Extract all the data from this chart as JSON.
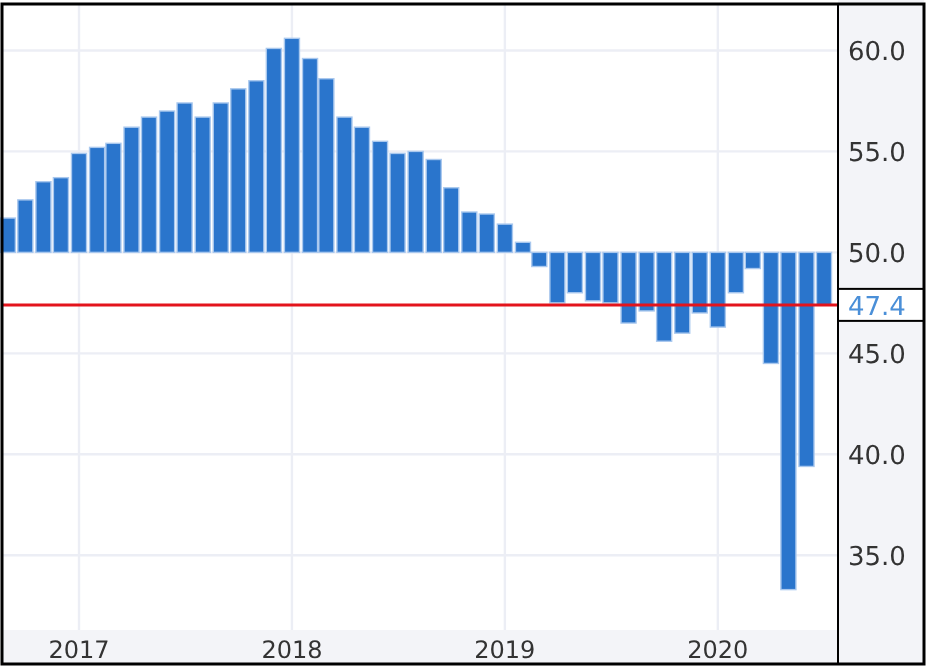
{
  "chart_data": {
    "type": "bar",
    "x": [
      "2016-09",
      "2016-10",
      "2016-11",
      "2016-12",
      "2017-01",
      "2017-02",
      "2017-03",
      "2017-04",
      "2017-05",
      "2017-06",
      "2017-07",
      "2017-08",
      "2017-09",
      "2017-10",
      "2017-11",
      "2017-12",
      "2018-01",
      "2018-02",
      "2018-03",
      "2018-04",
      "2018-05",
      "2018-06",
      "2018-07",
      "2018-08",
      "2018-09",
      "2018-10",
      "2018-11",
      "2018-12",
      "2019-01",
      "2019-02",
      "2019-03",
      "2019-04",
      "2019-05",
      "2019-06",
      "2019-07",
      "2019-08",
      "2019-09",
      "2019-10",
      "2019-11",
      "2019-12",
      "2020-01",
      "2020-02",
      "2020-03",
      "2020-04",
      "2020-05",
      "2020-06",
      "2020-07"
    ],
    "base": [
      50,
      50,
      50,
      50,
      50,
      50,
      50,
      50,
      50,
      50,
      50,
      50,
      50,
      50,
      50,
      50,
      50,
      50,
      50,
      50,
      50,
      50,
      50,
      50,
      50,
      50,
      50,
      50,
      50,
      50,
      50,
      50,
      50,
      50,
      50,
      50,
      50,
      50,
      50,
      50,
      50,
      50,
      50,
      50,
      50,
      50,
      50
    ],
    "values": [
      1.7,
      2.6,
      3.5,
      3.7,
      4.9,
      5.2,
      5.4,
      6.2,
      6.7,
      7.0,
      7.4,
      6.7,
      7.4,
      8.1,
      8.5,
      10.1,
      10.6,
      9.6,
      8.6,
      6.7,
      6.2,
      5.5,
      4.9,
      5.0,
      4.6,
      3.2,
      2.0,
      1.9,
      1.4,
      0.5,
      -0.7,
      -2.5,
      -2.0,
      -2.4,
      -2.5,
      -3.5,
      -2.9,
      -4.4,
      -4.0,
      -3.0,
      -3.7,
      -2.0,
      -0.8,
      -5.5,
      -16.7,
      -10.6,
      -2.6
    ],
    "color": "#2a75cc",
    "xlim": [
      "2016-08-22",
      "2020-07-25"
    ],
    "xticks": [
      {
        "value": "2017-01",
        "label": "2017"
      },
      {
        "value": "2018-01",
        "label": "2018"
      },
      {
        "value": "2019-01",
        "label": "2019"
      },
      {
        "value": "2020-01",
        "label": "2020"
      }
    ],
    "ylim": [
      31.3,
      62.3
    ],
    "yticks": [
      {
        "value": 35,
        "label": "35.0"
      },
      {
        "value": 40,
        "label": "40.0"
      },
      {
        "value": 45,
        "label": "45.0"
      },
      {
        "value": 50,
        "label": "50.0"
      },
      {
        "value": 55,
        "label": "55.0"
      },
      {
        "value": 60,
        "label": "60.0"
      }
    ],
    "ref_lines": [
      {
        "axis": "y",
        "value": 47.4,
        "label": "47.4",
        "color": "#e3141c"
      }
    ],
    "grid": true
  }
}
